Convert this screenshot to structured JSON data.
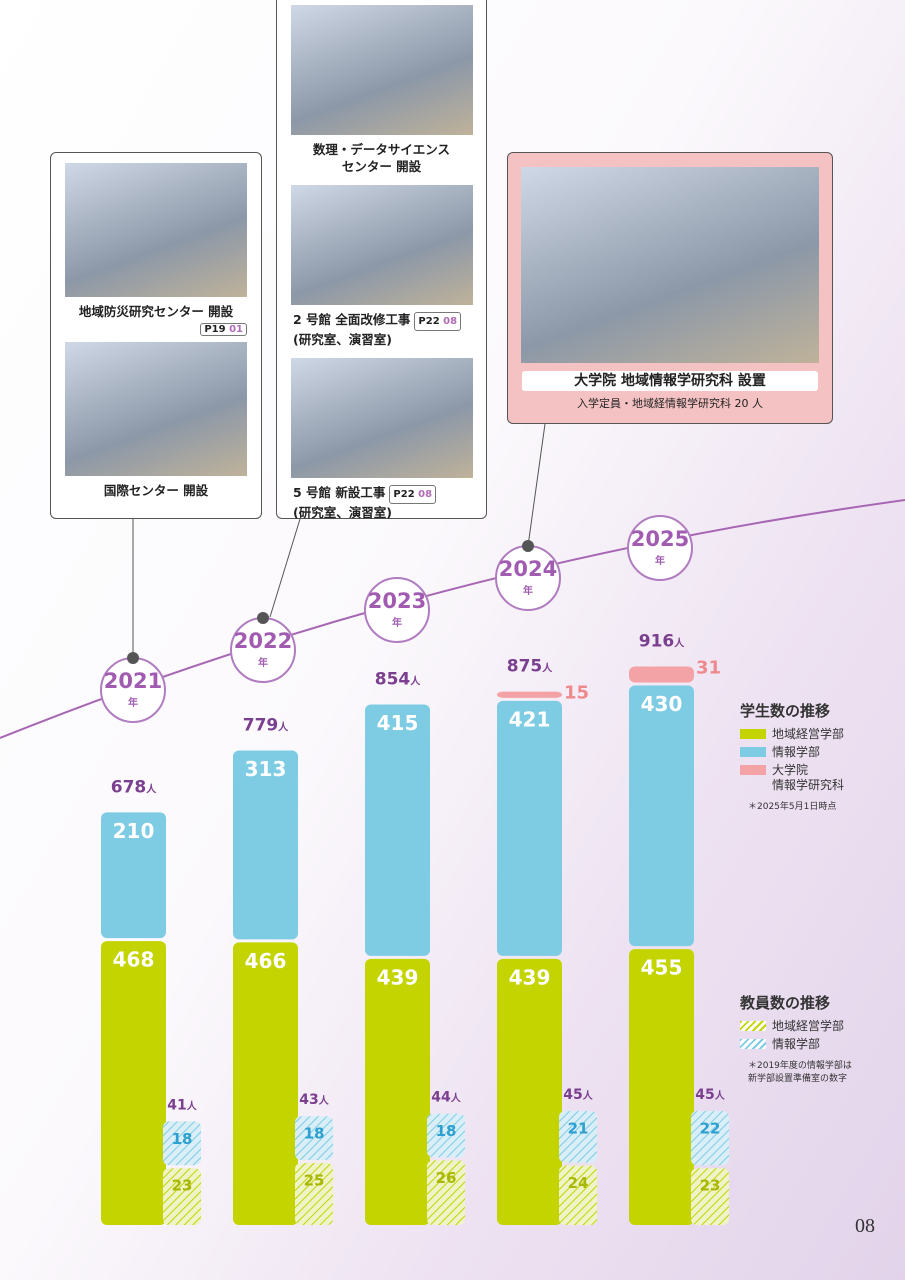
{
  "callouts": [
    {
      "items": [
        {
          "lines": [
            "地域防災研究センター 開設"
          ],
          "tag": {
            "page": "P19",
            "num": "01"
          }
        },
        {
          "lines": [
            "国際センター 開設"
          ]
        }
      ]
    },
    {
      "items": [
        {
          "lines": [
            "数理・データサイエンス",
            "センター 開設"
          ]
        },
        {
          "lines": [
            "2 号館 全面改修工事",
            "(研究室、演習室)"
          ],
          "tag": {
            "page": "P22",
            "num": "08"
          }
        },
        {
          "lines": [
            "5 号館 新設工事",
            "(研究室、演習室)"
          ],
          "tag": {
            "page": "P22",
            "num": "08"
          }
        }
      ]
    },
    {
      "items": [
        {
          "lines": [
            "大学院 地域情報学研究科 設置"
          ],
          "sub": "入学定員・地域経情報学研究科 20 人"
        }
      ]
    }
  ],
  "chart_data": [
    {
      "type": "bar",
      "stacked": true,
      "title": "学生数の推移",
      "categories": [
        "2021",
        "2022",
        "2023",
        "2024",
        "2025"
      ],
      "category_suffix": "年",
      "unit": "人",
      "series": [
        {
          "name": "地域経営学部",
          "color": "#c3d400",
          "values": [
            468,
            466,
            439,
            439,
            455
          ]
        },
        {
          "name": "情報学部",
          "color": "#7ecbe4",
          "values": [
            210,
            313,
            415,
            421,
            430
          ]
        },
        {
          "name": "大学院\n情報学研究科",
          "color": "#f3a2a5",
          "values": [
            null,
            null,
            null,
            15,
            31
          ]
        }
      ],
      "totals": [
        678,
        779,
        854,
        875,
        916
      ],
      "note": "＊2025年5月1日時点"
    },
    {
      "type": "bar",
      "stacked": true,
      "hatched": true,
      "title": "教員数の推移",
      "unit": "人",
      "series": [
        {
          "name": "地域経営学部",
          "color": "#c3d400",
          "values": [
            23,
            25,
            26,
            24,
            23
          ]
        },
        {
          "name": "情報学部",
          "color": "#7ecbe4",
          "values": [
            18,
            18,
            18,
            21,
            22
          ]
        }
      ],
      "totals": [
        41,
        43,
        44,
        45,
        45
      ],
      "note": "＊2019年度の情報学部は\n新学部設置準備室の数字"
    }
  ],
  "page_number": "08"
}
